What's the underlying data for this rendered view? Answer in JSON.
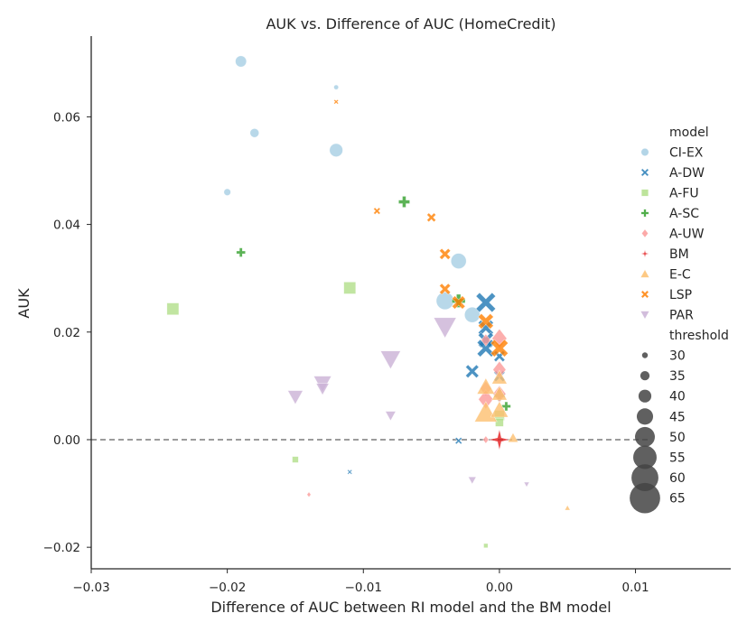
{
  "chart_data": {
    "type": "scatter",
    "title": "AUK vs. Difference of AUC (HomeCredit)",
    "xlabel": "Difference of AUC between RI model and the BM model",
    "ylabel": "AUK",
    "xlim": [
      -0.03,
      0.017
    ],
    "ylim": [
      -0.024,
      0.075
    ],
    "xticks": [
      -0.03,
      -0.02,
      -0.01,
      0.0,
      0.01
    ],
    "xtick_labels": [
      "−0.03",
      "−0.02",
      "−0.01",
      "0.00",
      "0.01"
    ],
    "yticks": [
      -0.02,
      0.0,
      0.02,
      0.04,
      0.06
    ],
    "ytick_labels": [
      "−0.02",
      "0.00",
      "0.02",
      "0.04",
      "0.06"
    ],
    "reference_line": {
      "y": 0,
      "style": "dashed"
    },
    "legend": {
      "placement": "right",
      "model_title": "model",
      "size_title": "threshold",
      "threshold_values": [
        30,
        35,
        40,
        45,
        50,
        55,
        60,
        65
      ],
      "threshold_labels": [
        "30",
        "35",
        "40",
        "45",
        "50",
        "55",
        "60",
        "65"
      ]
    },
    "series": [
      {
        "name": "CI-EX",
        "marker": "circle",
        "color": "#a6cee3",
        "points": [
          {
            "x": -0.019,
            "y": 0.0703,
            "threshold": 45
          },
          {
            "x": -0.012,
            "y": 0.0655,
            "threshold": 30
          },
          {
            "x": -0.018,
            "y": 0.057,
            "threshold": 40
          },
          {
            "x": -0.012,
            "y": 0.0538,
            "threshold": 50
          },
          {
            "x": -0.02,
            "y": 0.046,
            "threshold": 35
          },
          {
            "x": -0.003,
            "y": 0.0332,
            "threshold": 55
          },
          {
            "x": -0.004,
            "y": 0.0258,
            "threshold": 60
          },
          {
            "x": -0.002,
            "y": 0.0232,
            "threshold": 55
          }
        ]
      },
      {
        "name": "A-DW",
        "marker": "x",
        "color": "#1f78b4",
        "points": [
          {
            "x": -0.001,
            "y": 0.0255,
            "threshold": 65
          },
          {
            "x": -0.001,
            "y": 0.0208,
            "threshold": 55
          },
          {
            "x": -0.001,
            "y": 0.0185,
            "threshold": 55
          },
          {
            "x": -0.001,
            "y": 0.017,
            "threshold": 60
          },
          {
            "x": 0.0,
            "y": 0.0155,
            "threshold": 45
          },
          {
            "x": -0.002,
            "y": 0.0127,
            "threshold": 50
          },
          {
            "x": 0.0,
            "y": 0.0118,
            "threshold": 45
          },
          {
            "x": -0.003,
            "y": -0.0002,
            "threshold": 35
          },
          {
            "x": -0.011,
            "y": -0.006,
            "threshold": 30
          }
        ]
      },
      {
        "name": "A-FU",
        "marker": "square",
        "color": "#b2df8a",
        "points": [
          {
            "x": -0.011,
            "y": 0.0282,
            "threshold": 50
          },
          {
            "x": -0.024,
            "y": 0.0243,
            "threshold": 50
          },
          {
            "x": 0.0,
            "y": 0.0045,
            "threshold": 45
          },
          {
            "x": 0.0,
            "y": 0.0032,
            "threshold": 40
          },
          {
            "x": -0.015,
            "y": -0.0037,
            "threshold": 35
          },
          {
            "x": -0.001,
            "y": -0.0197,
            "threshold": 30
          }
        ]
      },
      {
        "name": "A-SC",
        "marker": "plus",
        "color": "#33a02c",
        "points": [
          {
            "x": -0.007,
            "y": 0.0442,
            "threshold": 45
          },
          {
            "x": -0.019,
            "y": 0.0348,
            "threshold": 40
          },
          {
            "x": -0.003,
            "y": 0.0258,
            "threshold": 50
          },
          {
            "x": 0.0,
            "y": 0.0082,
            "threshold": 45
          },
          {
            "x": 0.0005,
            "y": 0.0062,
            "threshold": 40
          }
        ]
      },
      {
        "name": "A-UW",
        "marker": "diamond",
        "color": "#fb9a99",
        "points": [
          {
            "x": 0.0,
            "y": 0.0188,
            "threshold": 60
          },
          {
            "x": -0.001,
            "y": 0.0185,
            "threshold": 45
          },
          {
            "x": 0.0,
            "y": 0.013,
            "threshold": 55
          },
          {
            "x": -0.001,
            "y": 0.0095,
            "threshold": 50
          },
          {
            "x": 0.0,
            "y": 0.0085,
            "threshold": 55
          },
          {
            "x": -0.001,
            "y": 0.0075,
            "threshold": 60
          },
          {
            "x": -0.001,
            "y": 0.0,
            "threshold": 35
          },
          {
            "x": -0.014,
            "y": -0.0102,
            "threshold": 30
          }
        ]
      },
      {
        "name": "BM",
        "marker": "star",
        "color": "#e31a1c",
        "points": [
          {
            "x": 0.0,
            "y": 0.0,
            "threshold": 65
          }
        ]
      },
      {
        "name": "E-C",
        "marker": "triangle-up",
        "color": "#fdbf6f",
        "points": [
          {
            "x": 0.0,
            "y": 0.0115,
            "threshold": 50
          },
          {
            "x": -0.001,
            "y": 0.0098,
            "threshold": 55
          },
          {
            "x": 0.0,
            "y": 0.0085,
            "threshold": 50
          },
          {
            "x": -0.001,
            "y": 0.005,
            "threshold": 65
          },
          {
            "x": 0.0,
            "y": 0.0055,
            "threshold": 55
          },
          {
            "x": 0.001,
            "y": 0.0003,
            "threshold": 40
          },
          {
            "x": 0.005,
            "y": -0.0127,
            "threshold": 30
          }
        ]
      },
      {
        "name": "LSP",
        "marker": "x-thick",
        "color": "#ff7f00",
        "points": [
          {
            "x": -0.012,
            "y": 0.0628,
            "threshold": 30
          },
          {
            "x": -0.009,
            "y": 0.0425,
            "threshold": 35
          },
          {
            "x": -0.005,
            "y": 0.0413,
            "threshold": 40
          },
          {
            "x": -0.004,
            "y": 0.0345,
            "threshold": 45
          },
          {
            "x": -0.004,
            "y": 0.028,
            "threshold": 45
          },
          {
            "x": -0.003,
            "y": 0.0255,
            "threshold": 50
          },
          {
            "x": -0.001,
            "y": 0.022,
            "threshold": 55
          },
          {
            "x": 0.0,
            "y": 0.017,
            "threshold": 60
          }
        ]
      },
      {
        "name": "PAR",
        "marker": "triangle-down",
        "color": "#cab2d6",
        "points": [
          {
            "x": -0.004,
            "y": 0.021,
            "threshold": 65
          },
          {
            "x": -0.008,
            "y": 0.015,
            "threshold": 60
          },
          {
            "x": -0.013,
            "y": 0.0105,
            "threshold": 55
          },
          {
            "x": -0.013,
            "y": 0.0095,
            "threshold": 45
          },
          {
            "x": -0.015,
            "y": 0.008,
            "threshold": 50
          },
          {
            "x": -0.008,
            "y": 0.0045,
            "threshold": 40
          },
          {
            "x": -0.002,
            "y": -0.0075,
            "threshold": 35
          },
          {
            "x": 0.002,
            "y": -0.0083,
            "threshold": 30
          }
        ]
      }
    ]
  }
}
